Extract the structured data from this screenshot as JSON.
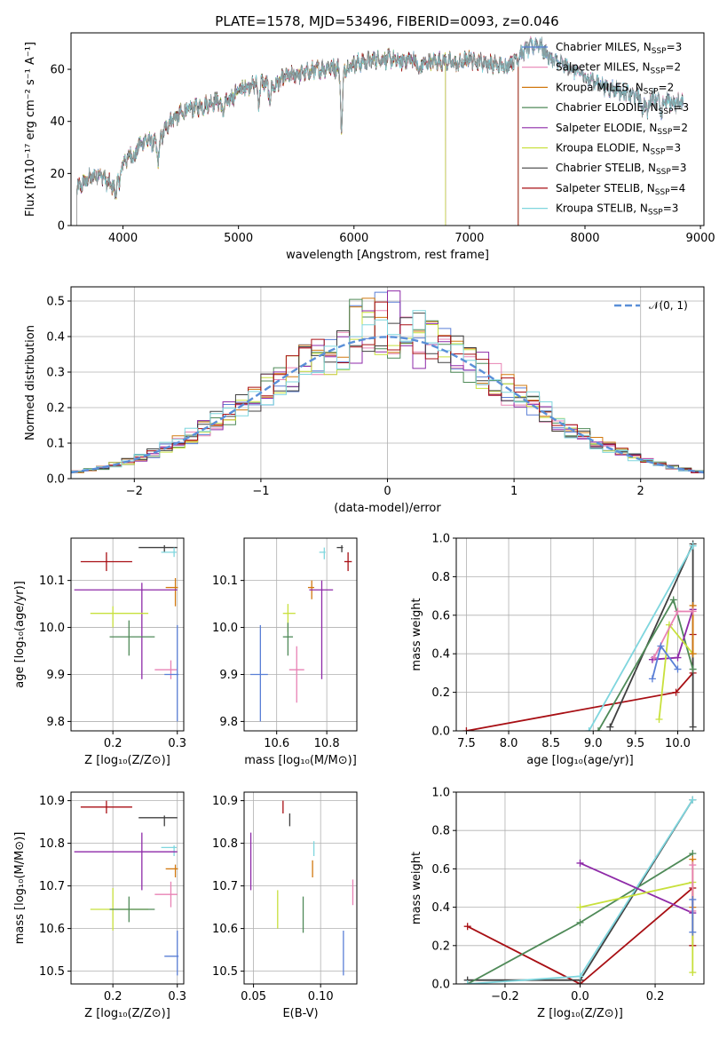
{
  "chart_data": [
    {
      "id": "spectrum",
      "type": "line",
      "title": "PLATE=1578, MJD=53496, FIBERID=0093, z=0.046",
      "xlabel": "wavelength [Angstrom, rest frame]",
      "ylabel": "Flux [fλ10⁻¹⁷ erg cm⁻² s⁻¹ A⁻¹]",
      "xlim": [
        3550,
        9030
      ],
      "ylim": [
        0,
        74
      ],
      "xticks": [
        4000,
        5000,
        6000,
        7000,
        8000,
        9000
      ],
      "yticks": [
        0,
        20,
        40,
        60
      ],
      "grid": false,
      "legend_position": "top-right",
      "data_range": [
        3600,
        8850
      ],
      "series": [
        {
          "name": "Chabrier MILES",
          "ssp": "3",
          "color": "#5a7fd6"
        },
        {
          "name": "Salpeter MILES",
          "ssp": "2",
          "color": "#e882b4"
        },
        {
          "name": "Kroupa MILES",
          "ssp": "2",
          "color": "#d1780f"
        },
        {
          "name": "Chabrier ELODIE",
          "ssp": "3",
          "color": "#4f8a58"
        },
        {
          "name": "Salpeter ELODIE",
          "ssp": "2",
          "color": "#8e2aa8"
        },
        {
          "name": "Kroupa ELODIE",
          "ssp": "3",
          "color": "#c8e03c"
        },
        {
          "name": "Chabrier STELIB",
          "ssp": "3",
          "color": "#404040"
        },
        {
          "name": "Salpeter STELIB",
          "ssp": "4",
          "color": "#a80f14"
        },
        {
          "name": "Kroupa STELIB",
          "ssp": "3",
          "color": "#7fd6de"
        }
      ],
      "continuum": {
        "x": [
          3600,
          3700,
          3800,
          3900,
          4000,
          4100,
          4200,
          4300,
          4400,
          4500,
          4600,
          4700,
          4800,
          4900,
          5000,
          5100,
          5200,
          5300,
          5400,
          5500,
          5600,
          5700,
          5800,
          5900,
          6000,
          6100,
          6200,
          6300,
          6400,
          6500,
          6600,
          6700,
          6800,
          6900,
          7000,
          7100,
          7200,
          7300,
          7400,
          7500,
          7600,
          7700,
          7800,
          7900,
          8000,
          8100,
          8200,
          8300,
          8400,
          8500,
          8600,
          8700,
          8800,
          8850
        ],
        "y": [
          14,
          18,
          20,
          15,
          24,
          29,
          33,
          31,
          40,
          43,
          45,
          46,
          48,
          47,
          52,
          54,
          55,
          53,
          57,
          58,
          59,
          60,
          61,
          60,
          62,
          63,
          64,
          64,
          63,
          64,
          62,
          63,
          63,
          62,
          64,
          63,
          62,
          61,
          64,
          68,
          70,
          64,
          62,
          60,
          57,
          55,
          53,
          52,
          50,
          49,
          49,
          48,
          47,
          48
        ]
      },
      "absorption_lines": [
        {
          "x": 3934,
          "depth": 7
        },
        {
          "x": 3969,
          "depth": 6
        },
        {
          "x": 4102,
          "depth": 4
        },
        {
          "x": 4305,
          "depth": 6
        },
        {
          "x": 4861,
          "depth": 4
        },
        {
          "x": 5175,
          "depth": 7
        },
        {
          "x": 5270,
          "depth": 5
        },
        {
          "x": 5893,
          "depth": 22
        },
        {
          "x": 6563,
          "depth": 5
        },
        {
          "x": 8498,
          "depth": 6
        },
        {
          "x": 8542,
          "depth": 7
        },
        {
          "x": 8662,
          "depth": 7
        }
      ],
      "model_cutoffs": [
        {
          "series": "Kroupa ELODIE",
          "x": 6790
        },
        {
          "series": "Salpeter ELODIE",
          "x": 6790
        },
        {
          "series": "Salpeter STELIB",
          "x": 7420
        },
        {
          "series": "Kroupa MILES",
          "x": 7420
        },
        {
          "series": "Chabrier ELODIE",
          "x": 7420
        }
      ]
    },
    {
      "id": "residuals",
      "type": "line",
      "xlabel": "(data-model)/error",
      "ylabel": "Normed distribution",
      "xlim": [
        -2.5,
        2.5
      ],
      "ylim": [
        0,
        0.54
      ],
      "xticks": [
        -2,
        -1,
        0,
        1,
        2
      ],
      "yticks": [
        0.0,
        0.1,
        0.2,
        0.3,
        0.4,
        0.5
      ],
      "grid": true,
      "legend_position": "top-right",
      "gaussian_label": "𝒩(0, 1)",
      "gaussian_color": "#5a8fd8",
      "hist_colors": [
        "#5a7fd6",
        "#e882b4",
        "#d1780f",
        "#4f8a58",
        "#8e2aa8",
        "#c8e03c",
        "#404040",
        "#a80f14",
        "#7fd6de"
      ]
    },
    {
      "id": "age-vs-Z",
      "type": "scatter",
      "xlabel": "Z [log₁₀(Z/Z⊙)]",
      "ylabel": "age  [log₁₀(age/yr)]",
      "xlim": [
        0.135,
        0.31
      ],
      "ylim": [
        9.78,
        10.19
      ],
      "xticks": [
        0.2,
        0.3
      ],
      "yticks": [
        9.8,
        9.9,
        10.0,
        10.1
      ],
      "grid": true,
      "points": [
        {
          "series": "Salpeter STELIB",
          "x": 0.19,
          "y": 10.14,
          "xerr": [
            0.04,
            0.04
          ],
          "yerr": [
            0.02,
            0.02
          ]
        },
        {
          "series": "Chabrier STELIB",
          "x": 0.28,
          "y": 10.17,
          "xerr": [
            0.04,
            0.02
          ],
          "yerr": [
            0.01,
            0.005
          ]
        },
        {
          "series": "Kroupa STELIB",
          "x": 0.295,
          "y": 10.16,
          "xerr": [
            0.02,
            0.004
          ],
          "yerr": [
            0.01,
            0.01
          ]
        },
        {
          "series": "Kroupa MILES",
          "x": 0.297,
          "y": 10.085,
          "xerr": [
            0.015,
            0.004
          ],
          "yerr": [
            0.04,
            0.02
          ]
        },
        {
          "series": "Salpeter ELODIE",
          "x": 0.245,
          "y": 10.08,
          "xerr": [
            0.105,
            0.055
          ],
          "yerr": [
            0.19,
            0.015
          ]
        },
        {
          "series": "Kroupa ELODIE",
          "x": 0.2,
          "y": 10.03,
          "xerr": [
            0.035,
            0.055
          ],
          "yerr": [
            0.03,
            0.015
          ]
        },
        {
          "series": "Chabrier ELODIE",
          "x": 0.225,
          "y": 9.98,
          "xerr": [
            0.03,
            0.04
          ],
          "yerr": [
            0.04,
            0.035
          ]
        },
        {
          "series": "Salpeter MILES",
          "x": 0.29,
          "y": 9.91,
          "xerr": [
            0.025,
            0.01
          ],
          "yerr": [
            0.02,
            0.02
          ]
        },
        {
          "series": "Chabrier MILES",
          "x": 0.3,
          "y": 9.9,
          "xerr": [
            0.02,
            0.002
          ],
          "yerr": [
            0.1,
            0.105
          ]
        }
      ]
    },
    {
      "id": "age-vs-mass",
      "type": "scatter",
      "xlabel": "mass [log₁₀(M/M⊙)]",
      "xlim": [
        10.47,
        10.92
      ],
      "ylim": [
        9.78,
        10.19
      ],
      "xticks": [
        10.6,
        10.8
      ],
      "yticks": [
        9.8,
        9.9,
        10.0,
        10.1
      ],
      "grid": true,
      "points": [
        {
          "series": "Salpeter STELIB",
          "x": 10.885,
          "y": 10.14,
          "xerr": [
            0.015,
            0.015
          ],
          "yerr": [
            0.02,
            0.02
          ]
        },
        {
          "series": "Chabrier STELIB",
          "x": 10.86,
          "y": 10.17,
          "xerr": [
            0.02,
            0.005
          ],
          "yerr": [
            0.01,
            0.005
          ]
        },
        {
          "series": "Kroupa STELIB",
          "x": 10.79,
          "y": 10.16,
          "xerr": [
            0.02,
            0.005
          ],
          "yerr": [
            0.015,
            0.01
          ]
        },
        {
          "series": "Kroupa MILES",
          "x": 10.74,
          "y": 10.085,
          "xerr": [
            0.015,
            0.01
          ],
          "yerr": [
            0.025,
            0.015
          ]
        },
        {
          "series": "Salpeter ELODIE",
          "x": 10.78,
          "y": 10.08,
          "xerr": [
            0.05,
            0.045
          ],
          "yerr": [
            0.19,
            0.02
          ]
        },
        {
          "series": "Kroupa ELODIE",
          "x": 10.645,
          "y": 10.03,
          "xerr": [
            0.02,
            0.03
          ],
          "yerr": [
            0.04,
            0.02
          ]
        },
        {
          "series": "Chabrier ELODIE",
          "x": 10.645,
          "y": 9.98,
          "xerr": [
            0.02,
            0.02
          ],
          "yerr": [
            0.04,
            0.03
          ]
        },
        {
          "series": "Salpeter MILES",
          "x": 10.68,
          "y": 9.91,
          "xerr": [
            0.03,
            0.03
          ],
          "yerr": [
            0.07,
            0.05
          ]
        },
        {
          "series": "Chabrier MILES",
          "x": 10.535,
          "y": 9.9,
          "xerr": [
            0.04,
            0.03
          ],
          "yerr": [
            0.1,
            0.105
          ]
        }
      ]
    },
    {
      "id": "weight-vs-age",
      "type": "line",
      "xlabel": "age  [log₁₀(age/yr)]",
      "ylabel": "mass weight",
      "xlim": [
        7.38,
        10.31
      ],
      "ylim": [
        0,
        1.0
      ],
      "xticks": [
        7.5,
        8.0,
        8.5,
        9.0,
        9.5,
        10.0
      ],
      "yticks": [
        0.0,
        0.2,
        0.4,
        0.6,
        0.8,
        1.0
      ],
      "grid": true,
      "series": [
        {
          "name": "Salpeter STELIB",
          "x": [
            7.5,
            9.98,
            10.18,
            10.18
          ],
          "y": [
            0.0,
            0.2,
            0.3,
            0.5
          ]
        },
        {
          "name": "Chabrier STELIB",
          "x": [
            9.2,
            10.18,
            10.18
          ],
          "y": [
            0.02,
            0.97,
            0.02
          ]
        },
        {
          "name": "Chabrier ELODIE",
          "x": [
            9.06,
            9.95,
            10.18
          ],
          "y": [
            0.0,
            0.68,
            0.32
          ]
        },
        {
          "name": "Kroupa STELIB",
          "x": [
            8.95,
            10.18
          ],
          "y": [
            0.0,
            0.96
          ]
        },
        {
          "name": "Salpeter ELODIE",
          "x": [
            9.7,
            10.0,
            10.18
          ],
          "y": [
            0.37,
            0.38,
            0.63
          ]
        },
        {
          "name": "Kroupa ELODIE",
          "x": [
            9.78,
            9.9,
            10.18
          ],
          "y": [
            0.06,
            0.55,
            0.4
          ]
        },
        {
          "name": "Kroupa MILES",
          "x": [
            10.18,
            10.18
          ],
          "y": [
            0.4,
            0.65
          ]
        },
        {
          "name": "Salpeter MILES",
          "x": [
            9.72,
            10.0,
            10.18
          ],
          "y": [
            0.38,
            0.62,
            0.62
          ]
        },
        {
          "name": "Chabrier MILES",
          "x": [
            9.7,
            9.8,
            10.0
          ],
          "y": [
            0.27,
            0.44,
            0.32
          ]
        }
      ]
    },
    {
      "id": "mass-vs-Z",
      "type": "scatter",
      "xlabel": "Z [log₁₀(Z/Z⊙)]",
      "ylabel": "mass [log₁₀(M/M⊙)]",
      "xlim": [
        0.135,
        0.31
      ],
      "ylim": [
        10.47,
        10.92
      ],
      "xticks": [
        0.2,
        0.3
      ],
      "yticks": [
        10.5,
        10.6,
        10.7,
        10.8,
        10.9
      ],
      "grid": true,
      "points": [
        {
          "series": "Salpeter STELIB",
          "x": 0.19,
          "y": 10.885,
          "xerr": [
            0.04,
            0.04
          ],
          "yerr": [
            0.015,
            0.015
          ]
        },
        {
          "series": "Chabrier STELIB",
          "x": 0.28,
          "y": 10.86,
          "xerr": [
            0.04,
            0.02
          ],
          "yerr": [
            0.02,
            0.005
          ]
        },
        {
          "series": "Kroupa STELIB",
          "x": 0.295,
          "y": 10.79,
          "xerr": [
            0.02,
            0.004
          ],
          "yerr": [
            0.02,
            0.005
          ]
        },
        {
          "series": "Salpeter ELODIE",
          "x": 0.245,
          "y": 10.78,
          "xerr": [
            0.105,
            0.055
          ],
          "yerr": [
            0.09,
            0.045
          ]
        },
        {
          "series": "Kroupa MILES",
          "x": 0.297,
          "y": 10.74,
          "xerr": [
            0.015,
            0.004
          ],
          "yerr": [
            0.02,
            0.01
          ]
        },
        {
          "series": "Salpeter MILES",
          "x": 0.29,
          "y": 10.68,
          "xerr": [
            0.025,
            0.01
          ],
          "yerr": [
            0.03,
            0.03
          ]
        },
        {
          "series": "Kroupa ELODIE",
          "x": 0.2,
          "y": 10.645,
          "xerr": [
            0.035,
            0.055
          ],
          "yerr": [
            0.05,
            0.05
          ]
        },
        {
          "series": "Chabrier ELODIE",
          "x": 0.225,
          "y": 10.645,
          "xerr": [
            0.03,
            0.04
          ],
          "yerr": [
            0.03,
            0.03
          ]
        },
        {
          "series": "Chabrier MILES",
          "x": 0.3,
          "y": 10.535,
          "xerr": [
            0.02,
            0.002
          ],
          "yerr": [
            0.045,
            0.06
          ]
        }
      ]
    },
    {
      "id": "mass-vs-EBV",
      "type": "scatter",
      "xlabel": "E(B-V)",
      "xlim": [
        0.043,
        0.127
      ],
      "ylim": [
        10.47,
        10.92
      ],
      "xticks": [
        0.05,
        0.1
      ],
      "yticks": [
        10.5,
        10.6,
        10.7,
        10.8,
        10.9
      ],
      "grid": true,
      "points": [
        {
          "series": "Salpeter STELIB",
          "x": 0.072,
          "y": 10.885,
          "yerr": [
            0.015,
            0.015
          ]
        },
        {
          "series": "Chabrier STELIB",
          "x": 0.077,
          "y": 10.855,
          "yerr": [
            0.015,
            0.015
          ]
        },
        {
          "series": "Kroupa STELIB",
          "x": 0.095,
          "y": 10.79,
          "yerr": [
            0.02,
            0.015
          ]
        },
        {
          "series": "Salpeter ELODIE",
          "x": 0.048,
          "y": 10.755,
          "yerr": [
            0.065,
            0.07
          ]
        },
        {
          "series": "Kroupa MILES",
          "x": 0.094,
          "y": 10.74,
          "yerr": [
            0.02,
            0.02
          ]
        },
        {
          "series": "Salpeter MILES",
          "x": 0.124,
          "y": 10.685,
          "yerr": [
            0.03,
            0.03
          ]
        },
        {
          "series": "Kroupa ELODIE",
          "x": 0.068,
          "y": 10.645,
          "yerr": [
            0.045,
            0.045
          ]
        },
        {
          "series": "Chabrier ELODIE",
          "x": 0.087,
          "y": 10.63,
          "yerr": [
            0.04,
            0.045
          ]
        },
        {
          "series": "Chabrier MILES",
          "x": 0.117,
          "y": 10.54,
          "yerr": [
            0.05,
            0.055
          ]
        }
      ]
    },
    {
      "id": "weight-vs-Z",
      "type": "line",
      "xlabel": "Z [log₁₀(Z/Z⊙)]",
      "ylabel": "mass weight",
      "xlim": [
        -0.33,
        0.33
      ],
      "ylim": [
        0,
        1.0
      ],
      "xticks": [
        -0.2,
        0.0,
        0.2
      ],
      "yticks": [
        0.0,
        0.2,
        0.4,
        0.6,
        0.8,
        1.0
      ],
      "grid": true,
      "series": [
        {
          "name": "Salpeter STELIB",
          "x": [
            -0.3,
            0.0,
            0.3,
            0.3
          ],
          "y": [
            0.3,
            0.0,
            0.5,
            0.2
          ]
        },
        {
          "name": "Chabrier STELIB",
          "x": [
            -0.3,
            0.0,
            0.3
          ],
          "y": [
            0.02,
            0.02,
            0.96
          ]
        },
        {
          "name": "Chabrier ELODIE",
          "x": [
            -0.3,
            0.0,
            0.3
          ],
          "y": [
            0.0,
            0.32,
            0.68
          ]
        },
        {
          "name": "Kroupa STELIB",
          "x": [
            -0.3,
            0.0,
            0.3
          ],
          "y": [
            0.0,
            0.04,
            0.96
          ]
        },
        {
          "name": "Salpeter ELODIE",
          "x": [
            0.0,
            0.3
          ],
          "y": [
            0.63,
            0.37
          ]
        },
        {
          "name": "Kroupa ELODIE",
          "x": [
            0.0,
            0.3,
            0.3
          ],
          "y": [
            0.4,
            0.53,
            0.06
          ]
        },
        {
          "name": "Kroupa MILES",
          "x": [
            0.3,
            0.3
          ],
          "y": [
            0.4,
            0.65
          ]
        },
        {
          "name": "Salpeter MILES",
          "x": [
            0.3,
            0.3
          ],
          "y": [
            0.38,
            0.62
          ]
        },
        {
          "name": "Chabrier MILES",
          "x": [
            0.3,
            0.3
          ],
          "y": [
            0.27,
            0.44
          ]
        }
      ]
    }
  ]
}
